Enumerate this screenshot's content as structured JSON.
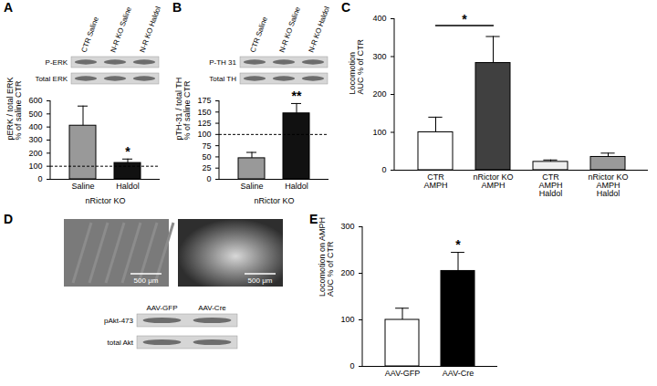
{
  "chart_data": [
    {
      "panel": "A",
      "type": "bar",
      "categories": [
        "Saline",
        "Haldol"
      ],
      "xlabel": "nRictor KO",
      "values": [
        410,
        125
      ],
      "errors": [
        150,
        30
      ],
      "colors": [
        "#999999",
        "#111111"
      ],
      "ylabel": "pERK / total ERK\n% of saline CTR",
      "ylim": [
        0,
        600
      ],
      "yticks": [
        0,
        100,
        200,
        300,
        400,
        500,
        600
      ],
      "reference_line": 100,
      "annotations": [
        {
          "text": "*",
          "category": "Haldol"
        }
      ],
      "blot": {
        "lanes": [
          "CTR Saline",
          "N-R KO Saline",
          "N-R KO Haldol"
        ],
        "rows": [
          "P-ERK",
          "Total ERK"
        ]
      }
    },
    {
      "panel": "B",
      "type": "bar",
      "categories": [
        "Saline",
        "Haldol"
      ],
      "xlabel": "nRictor KO",
      "values": [
        47,
        147
      ],
      "errors": [
        13,
        22
      ],
      "colors": [
        "#999999",
        "#111111"
      ],
      "ylabel": "pTH-31 / total TH\n% of saline CTR",
      "ylim": [
        0,
        175
      ],
      "yticks": [
        0,
        25,
        50,
        75,
        100,
        125,
        150,
        175
      ],
      "reference_line": 100,
      "annotations": [
        {
          "text": "**",
          "category": "Haldol"
        }
      ],
      "blot": {
        "lanes": [
          "CTR Saline",
          "N-R KO Saline",
          "N-R KO Haldol"
        ],
        "rows": [
          "P-TH 31",
          "Total TH"
        ]
      }
    },
    {
      "panel": "C",
      "type": "bar",
      "categories": [
        "CTR\nAMPH",
        "nRictor KO\nAMPH",
        "CTR\nAMPH\nHaldol",
        "nRictor KO\nAMPH\nHaldol"
      ],
      "values": [
        100,
        283,
        22,
        35
      ],
      "errors": [
        40,
        70,
        5,
        10
      ],
      "colors": [
        "#ffffff",
        "#404040",
        "#eeeeee",
        "#9a9a9a"
      ],
      "ylabel": "Locomotion\nAUC % of CTR",
      "ylim": [
        0,
        400
      ],
      "yticks": [
        0,
        100,
        200,
        300,
        400
      ],
      "annotations": [
        {
          "text": "*",
          "from": "CTR\nAMPH",
          "to": "nRictor KO\nAMPH"
        }
      ]
    },
    {
      "panel": "E",
      "type": "bar",
      "categories": [
        "AAV-GFP",
        "AAV-Cre"
      ],
      "values": [
        100,
        205
      ],
      "errors": [
        25,
        40
      ],
      "colors": [
        "#ffffff",
        "#000000"
      ],
      "ylabel": "Locomotion on AMPH\nAUC % of CTR",
      "ylim": [
        0,
        300
      ],
      "yticks": [
        0,
        100,
        200,
        300
      ],
      "annotations": [
        {
          "text": "*",
          "category": "AAV-Cre"
        }
      ]
    }
  ],
  "panel_D": {
    "panel": "D",
    "images": [
      {
        "scale_bar": "500 μm"
      },
      {
        "scale_bar": "500 μm"
      }
    ],
    "blot": {
      "lanes": [
        "AAV-GFP",
        "AAV-Cre"
      ],
      "rows": [
        "pAkt-473",
        "total Akt"
      ]
    }
  }
}
